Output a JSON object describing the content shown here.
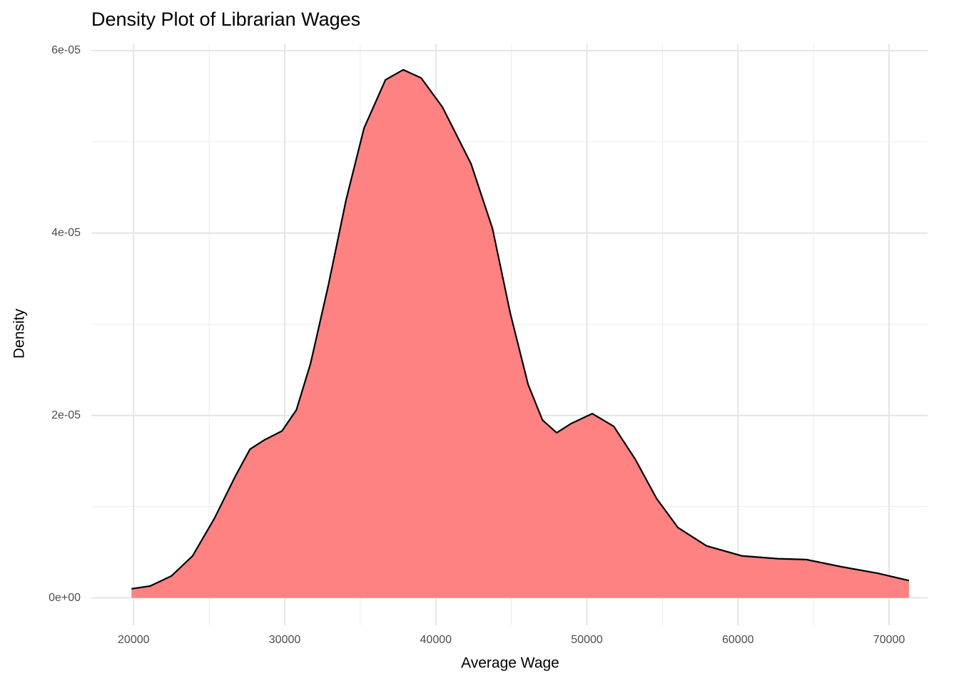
{
  "chart_data": {
    "type": "density",
    "title": "Density Plot of Librarian Wages",
    "x_label": "Average Wage",
    "y_label": "Density",
    "x": [
      19860,
      21090,
      22500,
      23900,
      25340,
      26750,
      27700,
      28640,
      29820,
      30770,
      31710,
      32890,
      34070,
      35250,
      36670,
      37850,
      39030,
      40440,
      42330,
      43750,
      44930,
      46110,
      47060,
      48000,
      48940,
      50360,
      51780,
      53200,
      54610,
      56030,
      57920,
      60280,
      62640,
      64530,
      66890,
      69250,
      71320
    ],
    "values": [
      1e-06,
      1.3e-06,
      2.4e-06,
      4.6e-06,
      8.7e-06,
      1.34e-05,
      1.63e-05,
      1.73e-05,
      1.83e-05,
      2.06e-05,
      2.57e-05,
      3.43e-05,
      4.37e-05,
      5.15e-05,
      5.68e-05,
      5.79e-05,
      5.7e-05,
      5.38e-05,
      4.76e-05,
      4.05e-05,
      3.12e-05,
      2.34e-05,
      1.95e-05,
      1.81e-05,
      1.91e-05,
      2.02e-05,
      1.88e-05,
      1.52e-05,
      1.09e-05,
      7.7e-06,
      5.7e-06,
      4.6e-06,
      4.3e-06,
      4.2e-06,
      3.4e-06,
      2.7e-06,
      1.9e-06
    ],
    "fill": "#ff8080",
    "color": "#000000",
    "xlim": [
      17200,
      72550
    ],
    "ylim": [
      -3e-06,
      6.07e-05
    ],
    "xticks": [
      20000,
      30000,
      40000,
      50000,
      60000,
      70000
    ],
    "xminor": [
      25000,
      35000,
      45000,
      55000,
      65000
    ],
    "yticks": [
      {
        "value": 0,
        "label": "0e+00"
      },
      {
        "value": 2e-05,
        "label": "2e-05"
      },
      {
        "value": 4e-05,
        "label": "4e-05"
      },
      {
        "value": 6e-05,
        "label": "6e-05"
      }
    ],
    "yminor": [
      1e-05,
      3e-05,
      5e-05
    ],
    "grid": true
  }
}
